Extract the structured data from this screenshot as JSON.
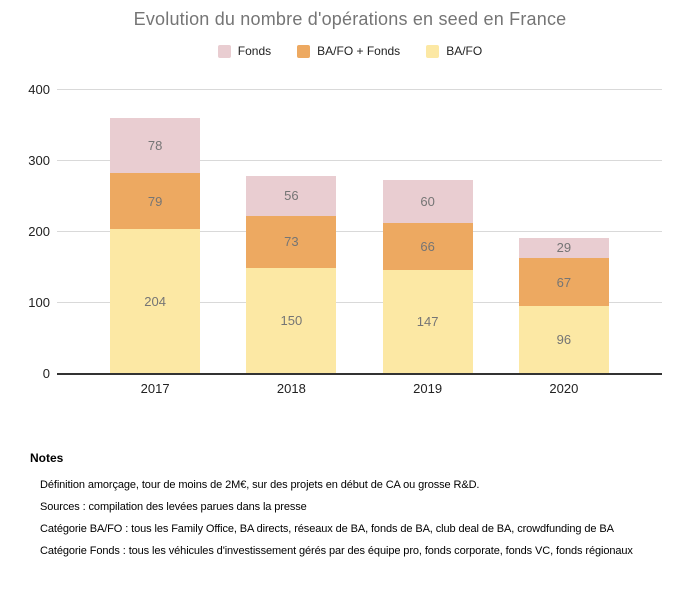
{
  "title": "Evolution du nombre d'opérations en seed en France",
  "legend": {
    "items": [
      {
        "label": "Fonds",
        "color": "#e9cdd1"
      },
      {
        "label": "BA/FO + Fonds",
        "color": "#eda961"
      },
      {
        "label": "BA/FO",
        "color": "#fce8a4"
      }
    ]
  },
  "chart_data": {
    "type": "bar",
    "stacked": true,
    "title": "Evolution du nombre d'opérations en seed en France",
    "categories": [
      "2017",
      "2018",
      "2019",
      "2020"
    ],
    "series": [
      {
        "name": "BA/FO",
        "color": "#fce8a4",
        "values": [
          204,
          150,
          147,
          96
        ]
      },
      {
        "name": "BA/FO + Fonds",
        "color": "#eda961",
        "values": [
          79,
          73,
          66,
          67
        ]
      },
      {
        "name": "Fonds",
        "color": "#e9cdd1",
        "values": [
          78,
          56,
          60,
          29
        ]
      }
    ],
    "totals": [
      361,
      279,
      273,
      192
    ],
    "xlabel": "",
    "ylabel": "",
    "ylim": [
      0,
      400
    ],
    "yticks": [
      0,
      100,
      200,
      300,
      400
    ],
    "grid": true,
    "legend_position": "top",
    "value_labels": "inside-center"
  },
  "notes": {
    "heading": "Notes",
    "lines": [
      "Définition amorçage, tour de moins de 2M€, sur des projets en début de CA ou grosse R&D.",
      "Sources : compilation des levées parues dans la presse",
      "Catégorie BA/FO : tous les Family Office, BA directs, réseaux de BA, fonds de BA, club deal de BA, crowdfunding de BA",
      "Catégorie Fonds : tous les véhicules d'investissement gérés par des équipe pro, fonds corporate, fonds VC, fonds régionaux"
    ]
  },
  "colors": {
    "title_text": "#757575",
    "value_label_text": "#757575",
    "axis_text": "#222222",
    "gridline": "#d9d9d9",
    "zero_line": "#333333",
    "background": "#ffffff"
  }
}
